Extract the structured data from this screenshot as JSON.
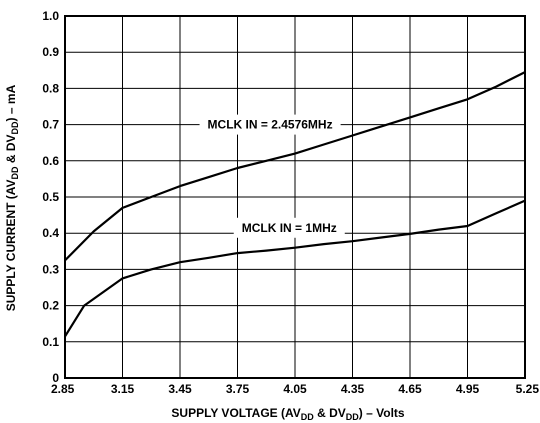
{
  "chart_data": {
    "type": "line",
    "title": "",
    "xlabel": "SUPPLY VOLTAGE (AV",
    "xlabel_sub1": "DD",
    "xlabel_mid": " & DV",
    "xlabel_sub2": "DD",
    "xlabel_end": ") – Volts",
    "ylabel": "SUPPLY CURRENT (AV",
    "ylabel_sub1": "DD",
    "ylabel_mid": " & DV",
    "ylabel_sub2": "DD",
    "ylabel_end": ") – mA",
    "xlim": [
      2.85,
      5.25
    ],
    "ylim": [
      0,
      1.0
    ],
    "x_ticks": [
      2.85,
      3.15,
      3.45,
      3.75,
      4.05,
      4.35,
      4.65,
      4.95,
      5.25
    ],
    "x_tick_labels": [
      "2.85",
      "3.15",
      "3.45",
      "3.75",
      "4.05",
      "4.35",
      "4.65",
      "4.95",
      "5.25"
    ],
    "y_ticks": [
      0,
      0.1,
      0.2,
      0.3,
      0.4,
      0.5,
      0.6,
      0.7,
      0.8,
      0.9,
      1.0
    ],
    "y_tick_labels": [
      "0",
      "0.1",
      "0.2",
      "0.3",
      "0.4",
      "0.5",
      "0.6",
      "0.7",
      "0.8",
      "0.9",
      "1.0"
    ],
    "grid": true,
    "series": [
      {
        "name": "MCLK IN = 2.4576MHz",
        "x": [
          2.85,
          3.0,
          3.15,
          3.3,
          3.45,
          3.6,
          3.75,
          3.9,
          4.05,
          4.2,
          4.35,
          4.5,
          4.65,
          4.8,
          4.95,
          5.1,
          5.25
        ],
        "y": [
          0.325,
          0.405,
          0.47,
          0.5,
          0.53,
          0.555,
          0.58,
          0.6,
          0.62,
          0.645,
          0.67,
          0.695,
          0.72,
          0.745,
          0.77,
          0.805,
          0.845
        ],
        "label_at": [
          3.92,
          0.7
        ]
      },
      {
        "name": "MCLK IN = 1MHz",
        "x": [
          2.85,
          2.95,
          3.15,
          3.3,
          3.45,
          3.6,
          3.75,
          3.9,
          4.05,
          4.2,
          4.35,
          4.5,
          4.65,
          4.8,
          4.95,
          5.1,
          5.25
        ],
        "y": [
          0.115,
          0.2,
          0.275,
          0.3,
          0.32,
          0.332,
          0.345,
          0.352,
          0.36,
          0.37,
          0.378,
          0.388,
          0.398,
          0.41,
          0.42,
          0.455,
          0.49
        ],
        "label_at": [
          4.02,
          0.415
        ]
      }
    ]
  }
}
